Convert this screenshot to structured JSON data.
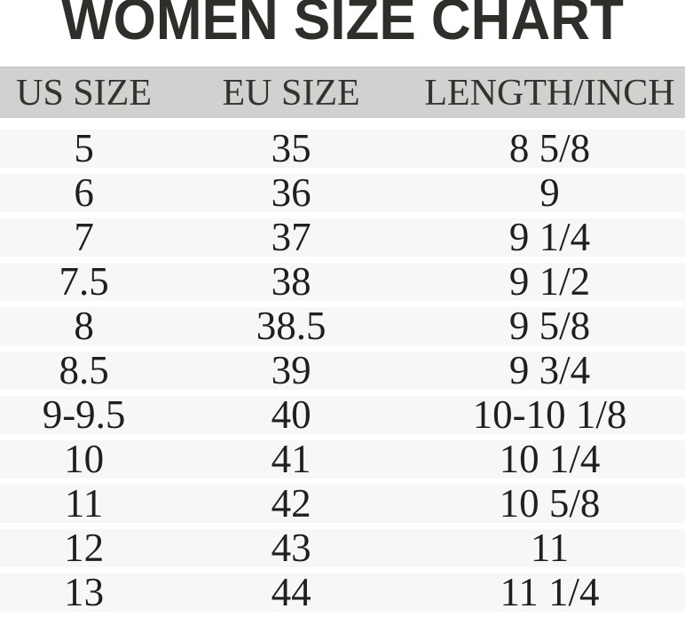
{
  "title": "WOMEN SIZE CHART",
  "chart_data": {
    "type": "table",
    "title": "WOMEN SIZE CHART",
    "columns": [
      "US SIZE",
      "EU SIZE",
      "LENGTH/INCH"
    ],
    "rows": [
      [
        "5",
        "35",
        "8 5/8"
      ],
      [
        "6",
        "36",
        "9"
      ],
      [
        "7",
        "37",
        "9 1/4"
      ],
      [
        "7.5",
        "38",
        "9 1/2"
      ],
      [
        "8",
        "38.5",
        "9 5/8"
      ],
      [
        "8.5",
        "39",
        "9 3/4"
      ],
      [
        "9-9.5",
        "40",
        "10-10 1/8"
      ],
      [
        "10",
        "41",
        "10 1/4"
      ],
      [
        "11",
        "42",
        "10 5/8"
      ],
      [
        "12",
        "43",
        "11"
      ],
      [
        "13",
        "44",
        "11 1/4"
      ]
    ]
  },
  "colors": {
    "header_bg": "#d2d1cf",
    "header_edge": "#c2c1bf",
    "row_bg": "#f8f7f5",
    "separator": "#ffffff",
    "title_text": "#2e2e2a",
    "header_text": "#33322f",
    "cell_text": "#201f1d",
    "page_bg": "#ffffff"
  }
}
